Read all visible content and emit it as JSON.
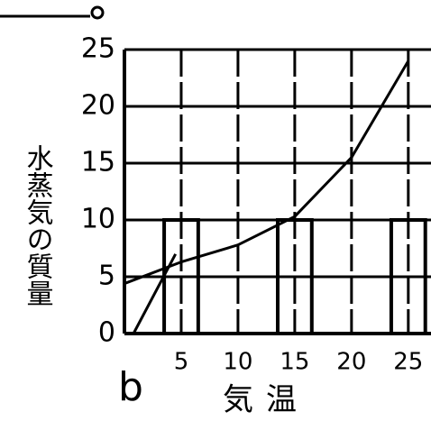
{
  "chart_data": {
    "type": "line",
    "y_label": "水蒸気の質量",
    "x_label": "気温",
    "annotation": "b",
    "xlim": [
      0,
      27
    ],
    "ylim": [
      0,
      25
    ],
    "xticks": [
      5,
      10,
      15,
      20,
      25
    ],
    "yticks": [
      0,
      5,
      10,
      15,
      20,
      25
    ],
    "grid": true,
    "series": [
      {
        "type": "bar",
        "color": "#000000",
        "x": [
          5,
          15,
          25
        ],
        "width": 3,
        "values": [
          10,
          10,
          10
        ]
      },
      {
        "type": "line",
        "color": "#000000",
        "x": [
          0,
          5,
          10,
          15,
          20,
          25
        ],
        "values": [
          4.4,
          6.3,
          7.8,
          10.3,
          15.5,
          24
        ]
      },
      {
        "type": "line",
        "color": "#000000",
        "x": [
          0.8,
          4.5
        ],
        "values": [
          0,
          7
        ]
      }
    ]
  }
}
